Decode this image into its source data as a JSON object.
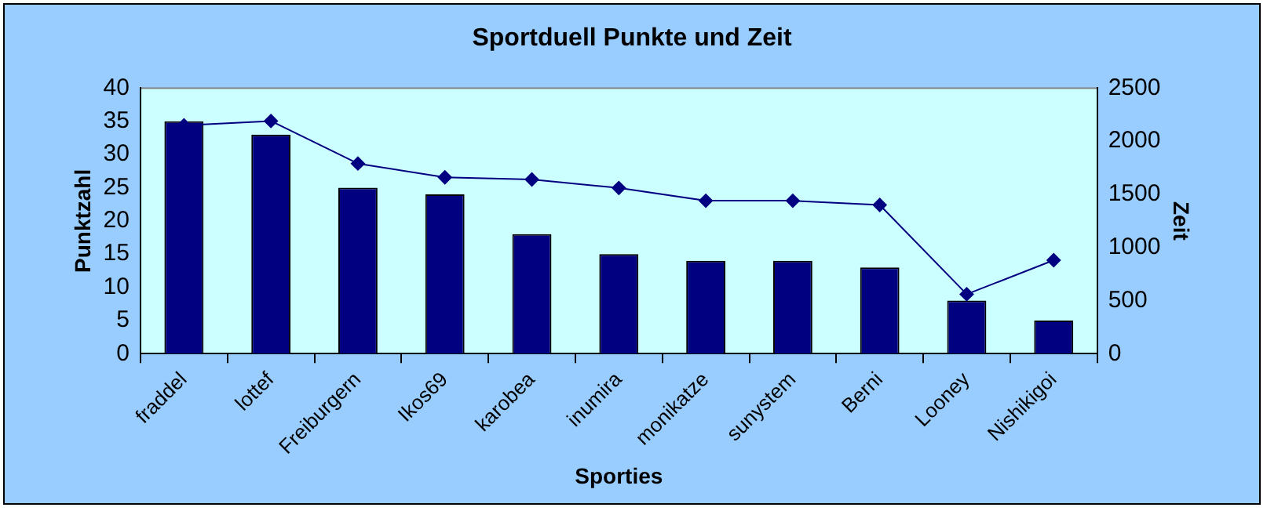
{
  "chart_data": {
    "type": "bar",
    "title": "Sportduell Punkte und Zeit",
    "xlabel": "Sporties",
    "ylabel": "Punktzahl",
    "y2label": "Zeit",
    "categories": [
      "fraddel",
      "lottef",
      "Freiburgern",
      "Ikos69",
      "karobea",
      "inumira",
      "monikatze",
      "sunystem",
      "Berni",
      "Looney",
      "Nishikigoi"
    ],
    "series": [
      {
        "color": "#000080",
        "values": [
          35,
          33,
          25,
          24,
          18,
          15,
          14,
          14,
          13,
          8,
          5
        ]
      },
      {
        "type": "line",
        "axis": "y2",
        "color": "#000080",
        "marker": "diamond",
        "values": [
          2150,
          2190,
          1790,
          1660,
          1640,
          1560,
          1440,
          1440,
          1400,
          560,
          880
        ]
      }
    ],
    "ylim": [
      0,
      40
    ],
    "yticks": [
      0,
      5,
      10,
      15,
      20,
      25,
      30,
      35,
      40
    ],
    "y2lim": [
      0,
      2500
    ],
    "y2ticks": [
      0,
      500,
      1000,
      1500,
      2000,
      2500
    ],
    "grid": false,
    "legend": false
  }
}
